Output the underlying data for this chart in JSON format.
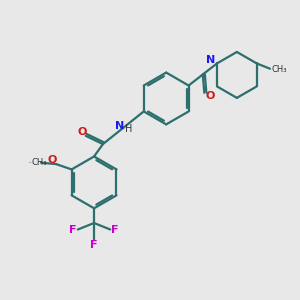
{
  "bg_color": "#e8e8e8",
  "bond_color": "#2d6e6e",
  "N_color": "#1a1aee",
  "O_color": "#cc1a1a",
  "F_color": "#cc00cc",
  "line_width": 1.6,
  "font_size_atom": 8,
  "font_size_small": 7,
  "xlim": [
    0,
    10
  ],
  "ylim": [
    0,
    10
  ]
}
